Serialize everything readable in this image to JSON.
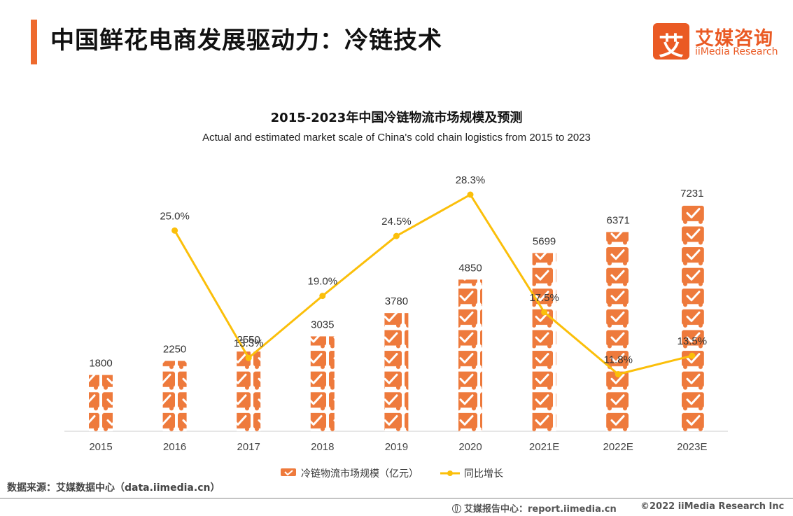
{
  "header": {
    "title": "中国鲜花电商发展驱动力：冷链技术",
    "logo_mark": "艾",
    "logo_cn": "艾媒咨询",
    "logo_en": "iiMedia Research"
  },
  "colors": {
    "accent": "#ee6a2e",
    "bar": "#ee7a3c",
    "line": "#fbbf0a",
    "axis": "#cccccc"
  },
  "chart_data": {
    "type": "bar",
    "title": "2015-2023年中国冷链物流市场规模及预测",
    "subtitle": "Actual and estimated market scale of China's cold chain logistics from 2015 to 2023",
    "categories": [
      "2015",
      "2016",
      "2017",
      "2018",
      "2019",
      "2020",
      "2021E",
      "2022E",
      "2023E"
    ],
    "series": [
      {
        "name": "冷链物流市场规模（亿元）",
        "type": "bar",
        "axis": "left",
        "values": [
          1800,
          2250,
          2550,
          3035,
          3780,
          4850,
          5699,
          6371,
          7231
        ],
        "labels": [
          "1800",
          "2250",
          "2550",
          "3035",
          "3780",
          "4850",
          "5699",
          "6371",
          "7231"
        ]
      },
      {
        "name": "同比增长",
        "type": "line",
        "axis": "right",
        "values": [
          null,
          25.0,
          13.3,
          19.0,
          24.5,
          28.3,
          17.5,
          11.8,
          13.5
        ],
        "labels": [
          "",
          "25.0%",
          "13.3%",
          "19.0%",
          "24.5%",
          "28.3%",
          "17.5%",
          "11.8%",
          "13.5%"
        ]
      }
    ],
    "ylim_left": [
      0,
      7231
    ],
    "ylim_right": [
      0,
      28.3
    ],
    "grid": false,
    "legend": "bottom-center"
  },
  "footer": {
    "source": "数据来源：艾媒数据中心（data.iimedia.cn）",
    "center_label": "艾媒报告中心：report.iimedia.cn",
    "copyright": "©2022 iiMedia Research Inc"
  }
}
